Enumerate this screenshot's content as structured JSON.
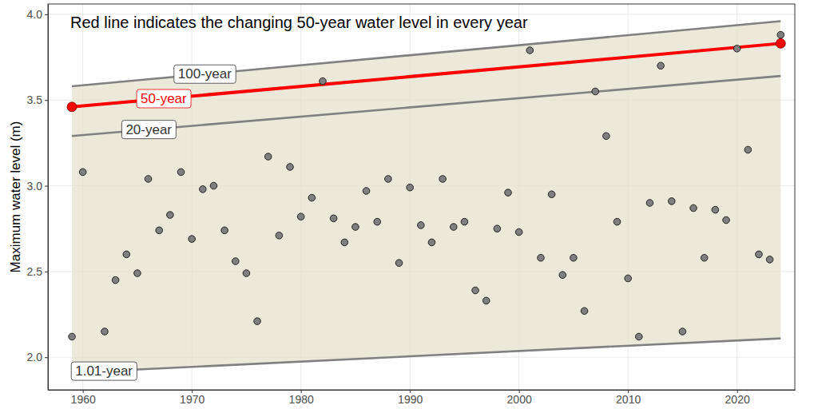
{
  "chart_data": {
    "type": "scatter",
    "annotation": "Red line indicates the changing 50-year water level in every year",
    "y_label": "Maximum water level (m)",
    "color": "#7f7f7f",
    "marker": "circle",
    "grid": true,
    "xlim": [
      1956.8,
      2025.3
    ],
    "xticks": [
      1960,
      1970,
      1980,
      1990,
      2000,
      2010,
      2020
    ],
    "ylim": [
      1.81,
      4.06
    ],
    "yticks": [
      {
        "value": 2,
        "label": "2.0"
      },
      {
        "value": 2.5,
        "label": "2.5"
      },
      {
        "value": 3,
        "label": "3.0"
      },
      {
        "value": 3.5,
        "label": "3.5"
      },
      {
        "value": 4,
        "label": "4.0"
      }
    ],
    "x": [
      1959,
      1960,
      1962,
      1963,
      1964,
      1965,
      1966,
      1967,
      1968,
      1969,
      1970,
      1971,
      1972,
      1973,
      1974,
      1975,
      1976,
      1977,
      1978,
      1979,
      1980,
      1981,
      1982,
      1983,
      1984,
      1985,
      1986,
      1987,
      1988,
      1989,
      1990,
      1991,
      1992,
      1993,
      1994,
      1995,
      1996,
      1997,
      1998,
      1999,
      2000,
      2001,
      2002,
      2003,
      2004,
      2005,
      2006,
      2007,
      2008,
      2009,
      2010,
      2011,
      2012,
      2013,
      2014,
      2015,
      2016,
      2017,
      2018,
      2019,
      2020,
      2021,
      2022,
      2023,
      2024
    ],
    "values": [
      2.12,
      3.08,
      2.15,
      2.45,
      2.6,
      2.49,
      3.04,
      2.74,
      2.83,
      3.08,
      2.69,
      2.98,
      3.0,
      2.74,
      2.56,
      2.49,
      2.21,
      3.17,
      2.71,
      3.11,
      2.82,
      2.93,
      3.61,
      2.81,
      2.67,
      2.76,
      2.97,
      2.79,
      3.04,
      2.55,
      2.99,
      2.77,
      2.67,
      3.04,
      2.76,
      2.79,
      2.39,
      2.33,
      2.75,
      2.96,
      2.73,
      3.79,
      2.58,
      2.95,
      2.48,
      2.58,
      2.27,
      3.55,
      3.29,
      2.79,
      2.46,
      2.12,
      2.9,
      3.7,
      2.91,
      2.15,
      2.87,
      2.58,
      2.86,
      2.8,
      3.8,
      3.21,
      2.6,
      2.57,
      3.88
    ],
    "series": [
      {
        "name": "100-year",
        "type": "line",
        "color": "#808080",
        "x": [
          1959,
          2024
        ],
        "values": [
          3.58,
          3.96
        ]
      },
      {
        "name": "50-year",
        "type": "line",
        "color": "#ff0000",
        "marker": "circle",
        "x": [
          1959,
          2024
        ],
        "values": [
          3.46,
          3.83
        ]
      },
      {
        "name": "20-year",
        "type": "line",
        "color": "#808080",
        "x": [
          1959,
          2024
        ],
        "values": [
          3.29,
          3.64
        ]
      },
      {
        "name": "1.01-year",
        "type": "line",
        "color": "#808080",
        "x": [
          1959,
          2024
        ],
        "values": [
          1.91,
          2.11
        ]
      }
    ]
  }
}
